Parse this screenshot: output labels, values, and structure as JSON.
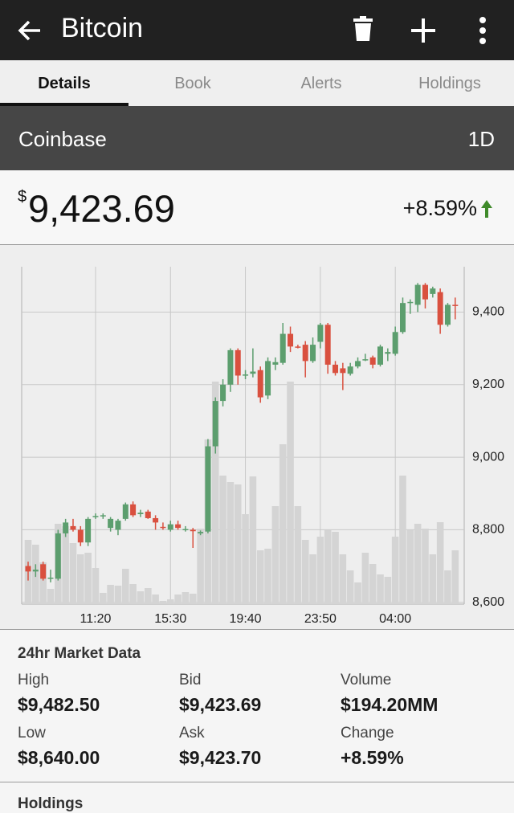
{
  "app_bar": {
    "title": "Bitcoin"
  },
  "tabs": [
    "Details",
    "Book",
    "Alerts",
    "Holdings"
  ],
  "exchange": {
    "name": "Coinbase",
    "period": "1D"
  },
  "price": {
    "currency": "$",
    "value": "9,423.69",
    "change": "+8.59%"
  },
  "chart_data": {
    "type": "candlestick",
    "categories": [
      null,
      null,
      null,
      null,
      null,
      null,
      null,
      null,
      null,
      "11:20",
      null,
      null,
      null,
      null,
      null,
      null,
      null,
      null,
      null,
      "15:30",
      null,
      null,
      null,
      null,
      null,
      null,
      null,
      null,
      null,
      "19:40",
      null,
      null,
      null,
      null,
      null,
      null,
      null,
      null,
      null,
      "23:50",
      null,
      null,
      null,
      null,
      null,
      null,
      null,
      null,
      null,
      "04:00",
      null,
      null,
      null,
      null,
      null,
      null,
      null,
      null
    ],
    "open": [
      8700,
      8685,
      8705,
      8665,
      8665,
      8790,
      8810,
      8800,
      8765,
      8835,
      8838,
      8805,
      8800,
      8830,
      8870,
      8843,
      8850,
      8832,
      8808,
      8800,
      8815,
      8800,
      8800,
      8790,
      8795,
      9030,
      9155,
      9200,
      9295,
      9225,
      9230,
      9240,
      9170,
      9255,
      9260,
      9340,
      9305,
      9310,
      9265,
      9318,
      9365,
      9255,
      9245,
      9230,
      9250,
      9268,
      9275,
      9255,
      9285,
      9285,
      9345,
      9425,
      9420,
      9475,
      9450,
      9455,
      9365,
      9420
    ],
    "high": [
      8712,
      8705,
      8712,
      8690,
      8800,
      8830,
      8830,
      8810,
      8835,
      8845,
      8845,
      8835,
      8830,
      8875,
      8878,
      8855,
      8855,
      8840,
      8820,
      8825,
      8825,
      8810,
      8805,
      8798,
      9050,
      9165,
      9215,
      9300,
      9300,
      9240,
      9300,
      9250,
      9275,
      9275,
      9370,
      9360,
      9310,
      9320,
      9330,
      9370,
      9370,
      9265,
      9260,
      9260,
      9275,
      9285,
      9280,
      9310,
      9300,
      9360,
      9440,
      9435,
      9480,
      9480,
      9470,
      9465,
      9425,
      9440
    ],
    "low": [
      8660,
      8670,
      8660,
      8655,
      8660,
      8780,
      8795,
      8755,
      8755,
      8830,
      8830,
      8795,
      8785,
      8825,
      8835,
      8835,
      8830,
      8800,
      8800,
      8795,
      8800,
      8795,
      8750,
      8785,
      8790,
      9010,
      9140,
      9180,
      9200,
      9215,
      9220,
      9150,
      9160,
      9240,
      9255,
      9290,
      9300,
      9220,
      9260,
      9300,
      9230,
      9225,
      9185,
      9225,
      9245,
      9265,
      9245,
      9250,
      9265,
      9280,
      9340,
      9395,
      9400,
      9410,
      9440,
      9340,
      9360,
      9380
    ],
    "close": [
      8685,
      8690,
      8665,
      8668,
      8790,
      8820,
      8800,
      8765,
      8830,
      8838,
      8840,
      8830,
      8825,
      8870,
      8840,
      8847,
      8832,
      8820,
      8806,
      8815,
      8805,
      8802,
      8796,
      8794,
      9030,
      9155,
      9200,
      9295,
      9225,
      9228,
      9236,
      9165,
      9265,
      9262,
      9340,
      9305,
      9303,
      9265,
      9310,
      9365,
      9255,
      9232,
      9232,
      9250,
      9265,
      9270,
      9255,
      9305,
      9290,
      9345,
      9425,
      9428,
      9475,
      9435,
      9465,
      9365,
      9420,
      9418
    ],
    "volume": [
      80,
      74,
      52,
      19,
      100,
      97,
      76,
      62,
      64,
      45,
      14,
      24,
      23,
      44,
      25,
      16,
      20,
      12,
      4,
      6,
      12,
      15,
      13,
      94,
      205,
      277,
      160,
      152,
      149,
      112,
      159,
      67,
      69,
      122,
      199,
      277,
      122,
      80,
      62,
      84,
      92,
      90,
      62,
      42,
      27,
      64,
      50,
      37,
      34,
      84,
      160,
      92,
      100,
      94,
      62,
      102,
      42,
      67
    ],
    "up_color": "#5c9e6e",
    "down_color": "#d9503f",
    "volume_color": "#d4d4d4",
    "ylim": [
      8595,
      9525
    ],
    "yticks": [
      {
        "value": 8600,
        "label": "8,600"
      },
      {
        "value": 8800,
        "label": "8,800"
      },
      {
        "value": 9000,
        "label": "9,000"
      },
      {
        "value": 9200,
        "label": "9,200"
      },
      {
        "value": 9400,
        "label": "9,400"
      }
    ],
    "grid": true
  },
  "market_data": {
    "title": "24hr Market Data",
    "items": [
      {
        "label": "High",
        "value": "$9,482.50"
      },
      {
        "label": "Bid",
        "value": "$9,423.69"
      },
      {
        "label": "Volume",
        "value": "$194.20MM"
      },
      {
        "label": "Low",
        "value": "$8,640.00"
      },
      {
        "label": "Ask",
        "value": "$9,423.70"
      },
      {
        "label": "Change",
        "value": "+8.59%"
      }
    ]
  },
  "holdings": {
    "title": "Holdings"
  }
}
